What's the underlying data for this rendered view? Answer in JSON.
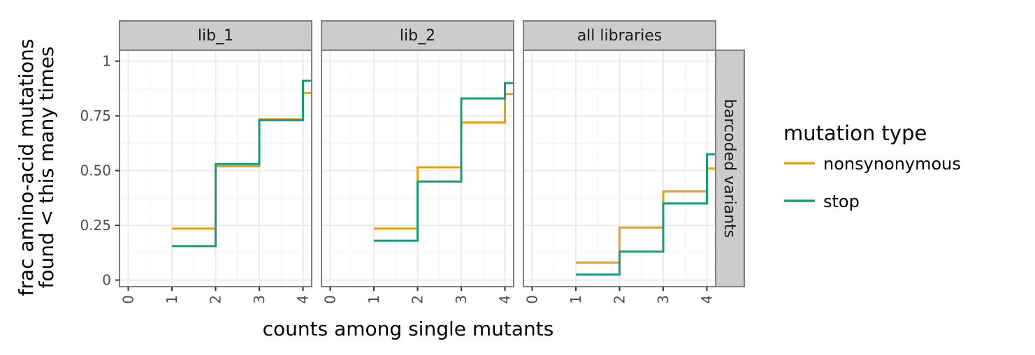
{
  "chart_data": {
    "type": "line",
    "step": true,
    "facet_rows": [
      "barcoded variants"
    ],
    "panels": [
      {
        "title": "lib_1",
        "series": [
          {
            "name": "nonsynonymous",
            "x": [
              1,
              2,
              3,
              4
            ],
            "y": [
              0.235,
              0.52,
              0.735,
              0.855
            ]
          },
          {
            "name": "stop",
            "x": [
              1,
              2,
              3,
              4
            ],
            "y": [
              0.155,
              0.53,
              0.73,
              0.91
            ]
          }
        ]
      },
      {
        "title": "lib_2",
        "series": [
          {
            "name": "nonsynonymous",
            "x": [
              1,
              2,
              3,
              4
            ],
            "y": [
              0.235,
              0.515,
              0.72,
              0.85
            ]
          },
          {
            "name": "stop",
            "x": [
              1,
              2,
              3,
              4
            ],
            "y": [
              0.18,
              0.45,
              0.83,
              0.9
            ]
          }
        ]
      },
      {
        "title": "all libraries",
        "series": [
          {
            "name": "nonsynonymous",
            "x": [
              1,
              2,
              3,
              4
            ],
            "y": [
              0.08,
              0.24,
              0.405,
              0.51
            ]
          },
          {
            "name": "stop",
            "x": [
              1,
              2,
              3,
              4
            ],
            "y": [
              0.025,
              0.13,
              0.35,
              0.575
            ]
          }
        ]
      }
    ],
    "xlabel": "counts among single mutants",
    "ylabel_lines": [
      "frac amino-acid mutations",
      "found < this many times"
    ],
    "x_ticks": [
      "0",
      "1",
      "2",
      "3",
      "4"
    ],
    "y_ticks": [
      {
        "value": 0,
        "label": "0"
      },
      {
        "value": 0.25,
        "label": "0.25"
      },
      {
        "value": 0.5,
        "label": "0.50"
      },
      {
        "value": 0.75,
        "label": "0.75"
      },
      {
        "value": 1,
        "label": "1"
      }
    ],
    "xlim": [
      -0.2,
      4.2
    ],
    "ylim": [
      -0.03,
      1.05
    ],
    "grid": true,
    "legend": {
      "title": "mutation type",
      "position": "right",
      "entries": [
        {
          "name": "nonsynonymous",
          "color": "#E6A211"
        },
        {
          "name": "stop",
          "color": "#149E77"
        }
      ]
    }
  }
}
